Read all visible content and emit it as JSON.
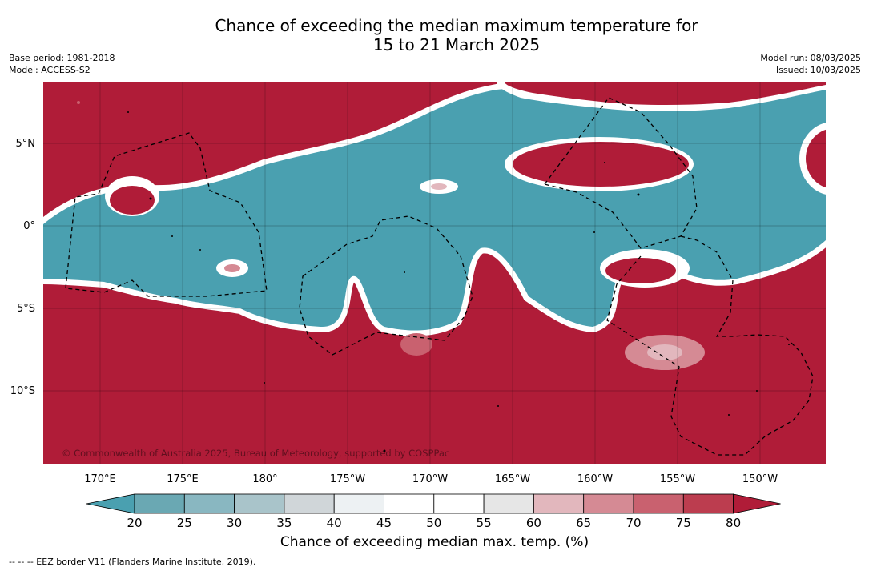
{
  "title_line1": "Chance of exceeding the median maximum temperature for",
  "title_line2": "15 to 21 March 2025",
  "meta_left": [
    "Base period: 1981-2018",
    "Model: ACCESS-S2"
  ],
  "meta_right": [
    "Model run: 08/03/2025",
    "Issued: 10/03/2025"
  ],
  "copyright": "© Commonwealth of Australia 2025, Bureau of Meteorology, supported by COSPPac",
  "lat_labels": [
    "5°N",
    "0°",
    "5°S",
    "10°S"
  ],
  "lon_labels": [
    "170°E",
    "175°E",
    "180°",
    "175°W",
    "170°W",
    "165°W",
    "160°W",
    "155°W",
    "150°W"
  ],
  "colorbar": {
    "ticks": [
      "20",
      "25",
      "30",
      "35",
      "40",
      "45",
      "50",
      "55",
      "60",
      "65",
      "70",
      "75",
      "80"
    ],
    "colors": [
      "#4aa0b0",
      "#6aa8b3",
      "#89b7c1",
      "#a9c4ca",
      "#d0d6d9",
      "#edf1f3",
      "#ffffff",
      "#ffffff",
      "#e6e6e6",
      "#e2b7bd",
      "#d58a94",
      "#c9616f",
      "#bc3d4f",
      "#b01c38"
    ],
    "title": "Chance of exceeding median max. temp. (%)"
  },
  "colors": {
    "above": "#b01c38",
    "below": "#4aa0b0"
  },
  "footnote": "--  --  -- EEZ border V11 (Flanders Marine Institute, 2019)."
}
